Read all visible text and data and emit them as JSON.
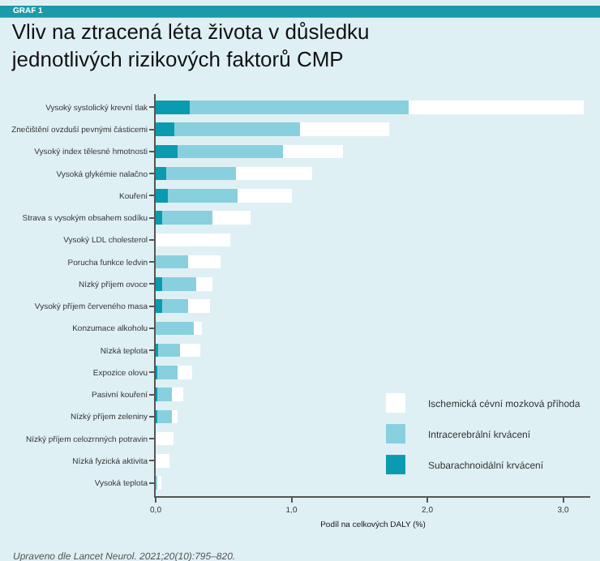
{
  "chart_data": {
    "type": "bar",
    "orientation": "horizontal",
    "stacked": true,
    "title": "Vliv na ztracená léta života v důsledku jednotlivých rizikových faktorů CMP",
    "subtitle": "GRAF 1",
    "xlabel": "Podíl na celkových DALY (%)",
    "categories": [
      "Vysoký systolický krevní tlak",
      "Znečištění ovzduší pevnými částicemi",
      "Vysoký index tělesné hmotnosti",
      "Vysoká glykémie nalačno",
      "Kouření",
      "Strava s vysokým obsahem sodíku",
      "Vysoký LDL cholesterol",
      "Porucha funkce ledvin",
      "Nízký příjem ovoce",
      "Vysoký příjem červeného masa",
      "Konzumace alkoholu",
      "Nízká teplota",
      "Expozice olovu",
      "Pasivní kouření",
      "Nízký příjem zeleniny",
      "Nízký příjem celozrnných potravin",
      "Nízká fyzická aktivita",
      "Vysoká teplota"
    ],
    "series": [
      {
        "name": "Subarachnoidální krvácení",
        "color": "#0a9bb0",
        "values": [
          0.25,
          0.14,
          0.16,
          0.08,
          0.09,
          0.05,
          0,
          0,
          0.05,
          0.05,
          0,
          0.02,
          0.01,
          0.01,
          0.01,
          0,
          0,
          0
        ]
      },
      {
        "name": "Intracerebrální krvácení",
        "color": "#88d0de",
        "values": [
          1.61,
          0.92,
          0.78,
          0.51,
          0.51,
          0.37,
          0,
          0.24,
          0.25,
          0.19,
          0.28,
          0.16,
          0.15,
          0.11,
          0.11,
          0,
          0,
          0.02
        ]
      },
      {
        "name": "Ischemická cévní mozková příhoda",
        "color": "#ffffff",
        "values": [
          1.29,
          0.66,
          0.44,
          0.56,
          0.4,
          0.28,
          0.55,
          0.24,
          0.12,
          0.16,
          0.06,
          0.15,
          0.11,
          0.08,
          0.04,
          0.13,
          0.1,
          0.02
        ]
      }
    ],
    "xlim": [
      0,
      3.2
    ],
    "xticks": [
      {
        "value": 0,
        "label": "0,0"
      },
      {
        "value": 1,
        "label": "1,0"
      },
      {
        "value": 2,
        "label": "2,0"
      },
      {
        "value": 3,
        "label": "3,0"
      }
    ],
    "grid": false,
    "legend": "bottom right",
    "annotations": [
      "Upraveno dle Lancet Neurol. 2021;20(10):795–820."
    ]
  }
}
